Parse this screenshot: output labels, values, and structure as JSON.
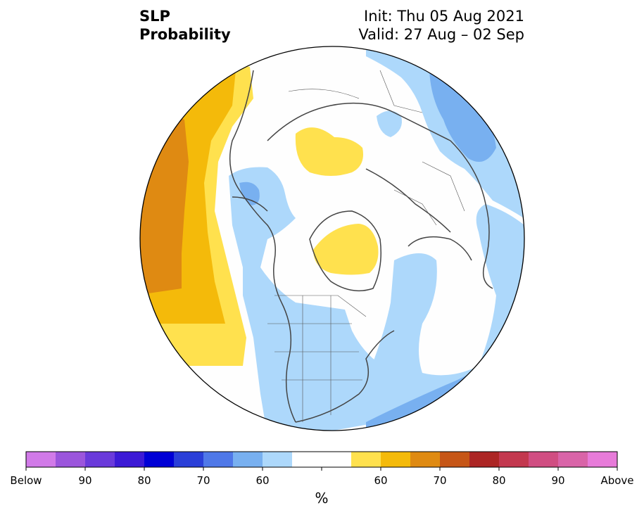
{
  "header": {
    "title_line1": "SLP",
    "title_line2": "Probability",
    "init_label": "Init: Thu 05 Aug 2021",
    "valid_label": "Valid: 27 Aug – 02 Sep"
  },
  "map": {
    "projection": "north-polar-stereographic",
    "region": "Northern Hemisphere (North America / Arctic / North Pacific / North Atlantic)",
    "features": [
      {
        "name": "north-pacific-above-normal",
        "category": "above",
        "level": "60-70"
      },
      {
        "name": "central-siberia-above-normal",
        "category": "above",
        "level": "60"
      },
      {
        "name": "arctic-greenland-above-normal",
        "category": "above",
        "level": "60"
      },
      {
        "name": "north-america-below-normal",
        "category": "below",
        "level": "60"
      },
      {
        "name": "north-atlantic-below-normal",
        "category": "below",
        "level": "60"
      },
      {
        "name": "east-siberia-below-normal",
        "category": "below",
        "level": "60-70"
      },
      {
        "name": "alaska-below-normal",
        "category": "below",
        "level": "60-70"
      },
      {
        "name": "northwest-atlantic-below-normal",
        "category": "below",
        "level": "60-70"
      }
    ]
  },
  "colorbar": {
    "unit_label": "%",
    "tick_labels": [
      "Below",
      "90",
      "80",
      "70",
      "60",
      "60",
      "70",
      "80",
      "90",
      "Above"
    ],
    "colors": [
      "#d17ae8",
      "#9b55dc",
      "#6a3adb",
      "#3c1ad6",
      "#0000d6",
      "#2a3fd8",
      "#4f78e8",
      "#78b0f0",
      "#add8fb",
      "#ffffff",
      "#ffffff",
      "#ffe14e",
      "#f4ba0a",
      "#df8a12",
      "#c65617",
      "#ac2524",
      "#c3384f",
      "#d04e82",
      "#d964a8",
      "#e77bd9"
    ]
  }
}
